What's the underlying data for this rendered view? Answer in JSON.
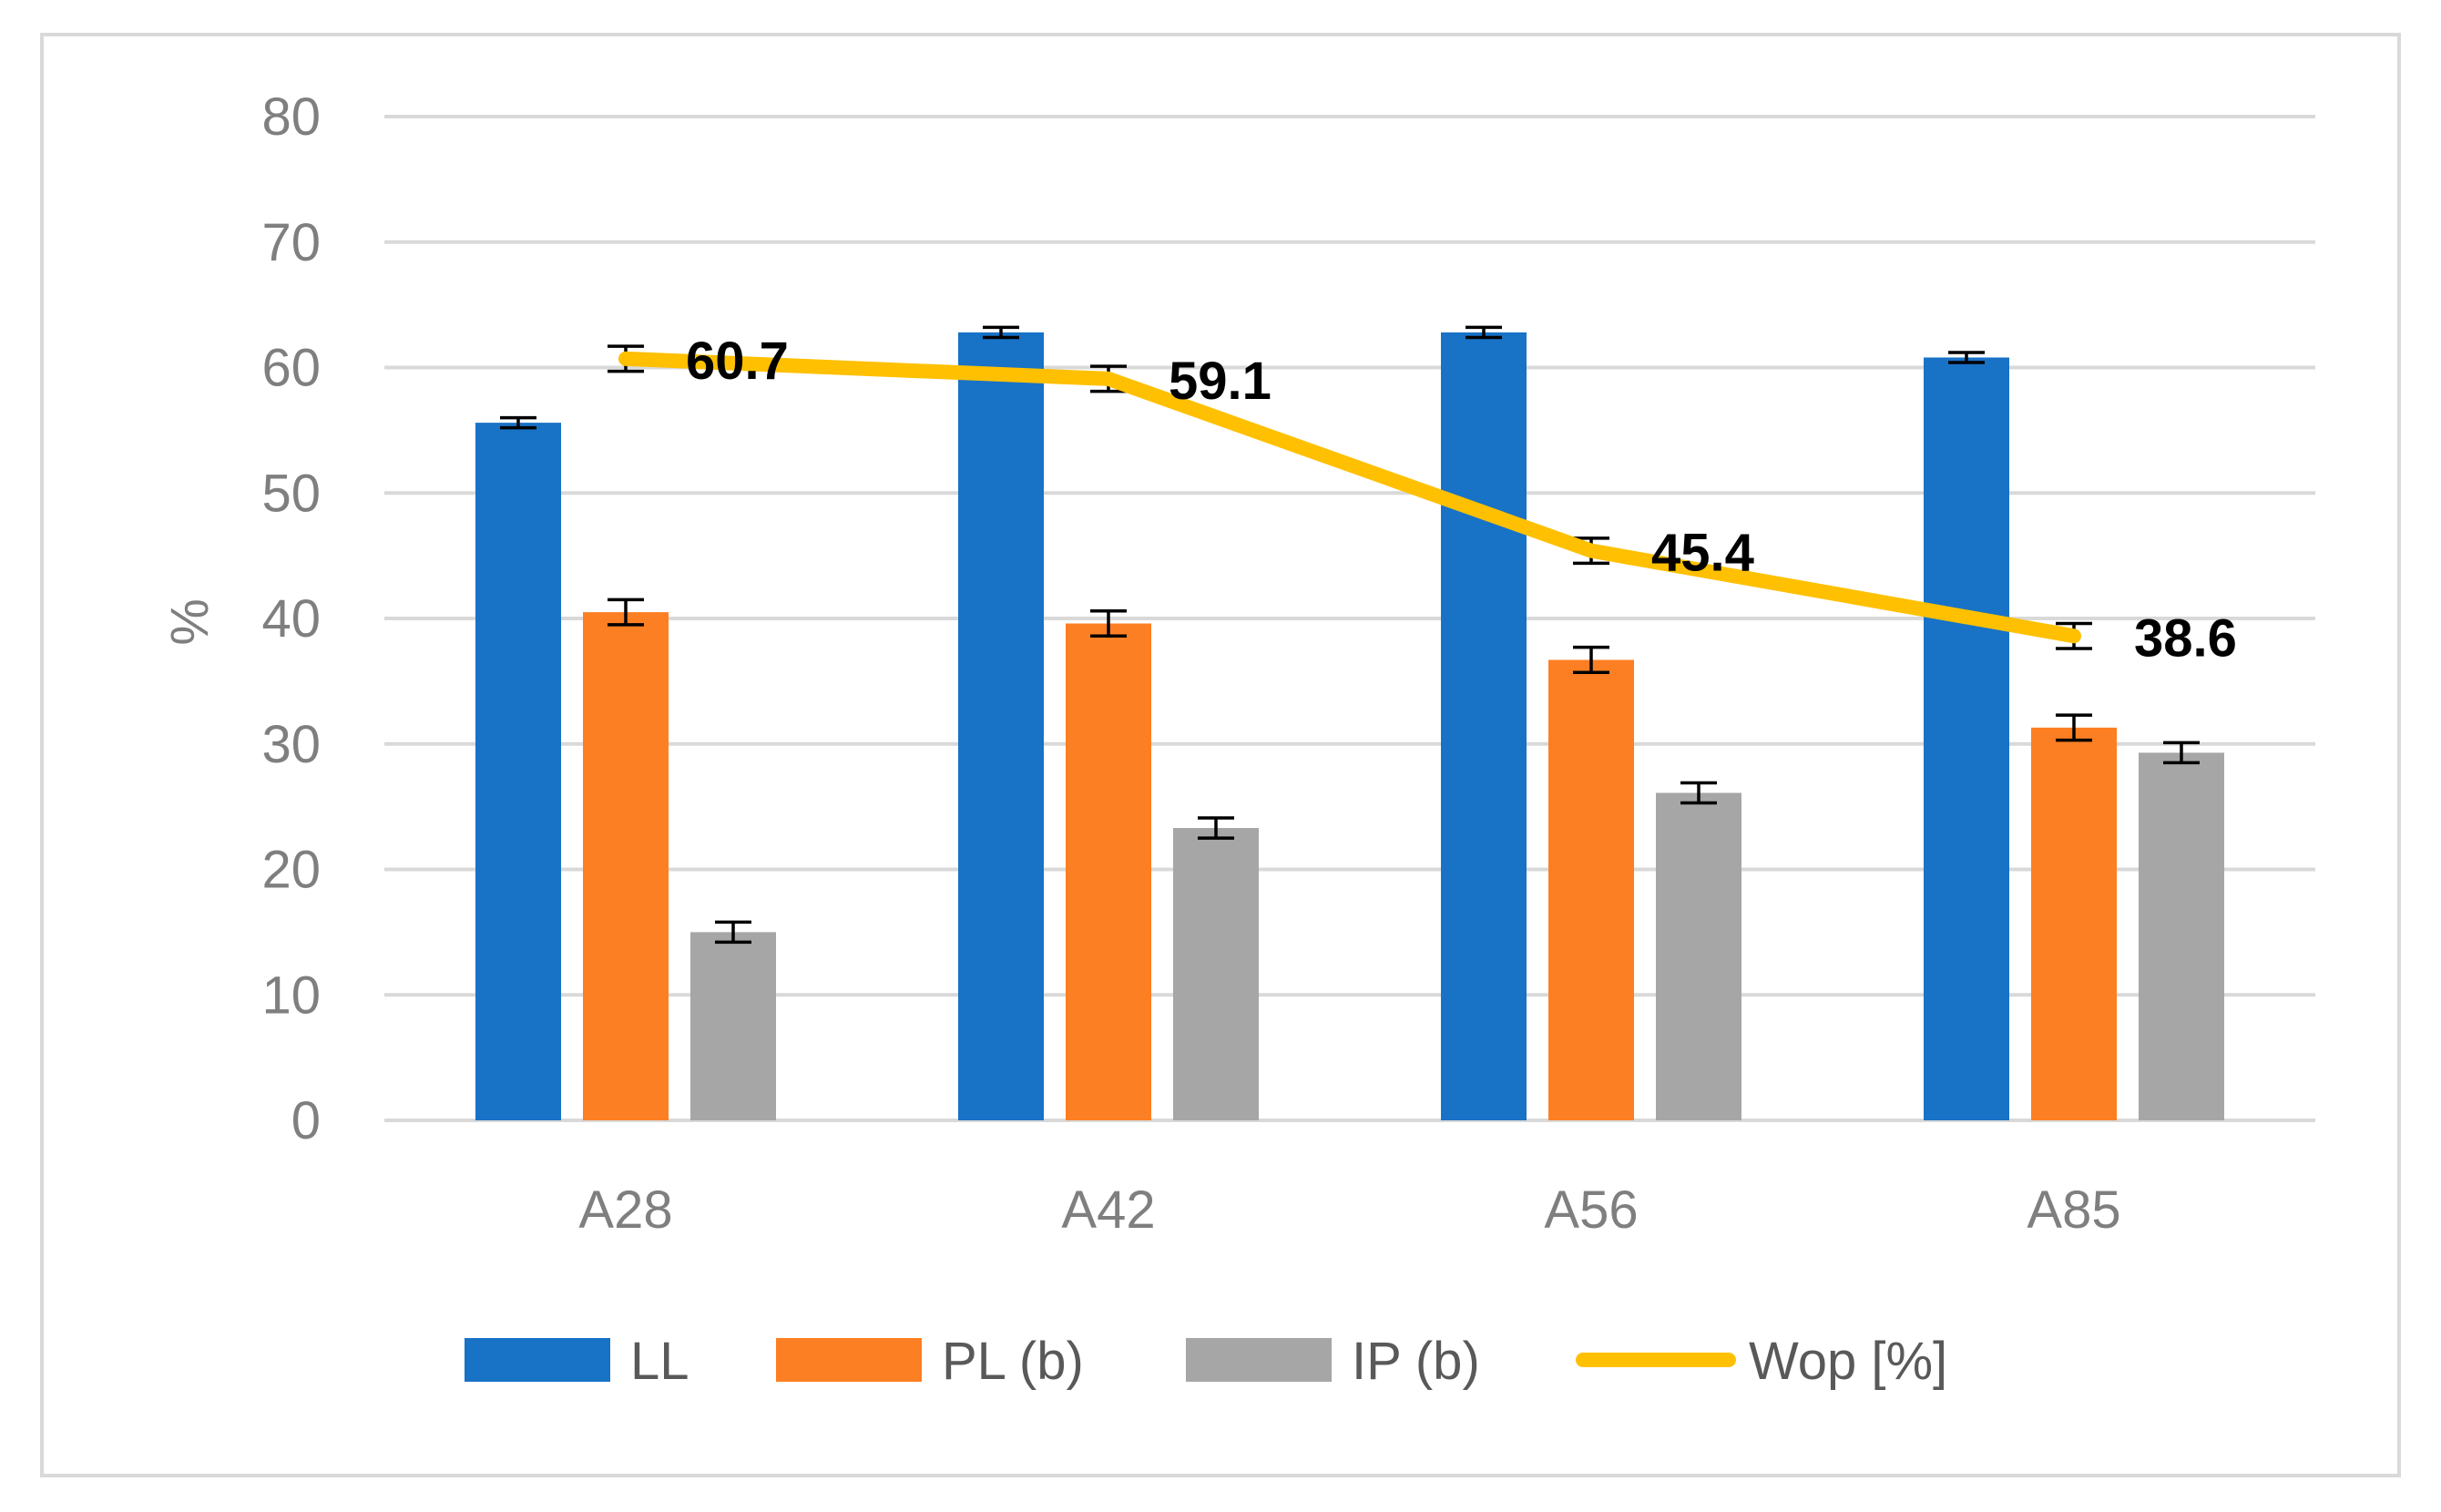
{
  "chart_data": {
    "type": "bar",
    "title": "",
    "xlabel": "",
    "ylabel": "%",
    "ylim": [
      0,
      80
    ],
    "yticks": [
      0,
      10,
      20,
      30,
      40,
      50,
      60,
      70,
      80
    ],
    "grid": true,
    "legend_position": "bottom",
    "categories": [
      "A28",
      "A42",
      "A56",
      "A85"
    ],
    "series": [
      {
        "name": "LL",
        "kind": "bar",
        "color": "#1872c6",
        "values": [
          55.6,
          62.8,
          62.8,
          60.8
        ],
        "errors": [
          0.4,
          0.4,
          0.4,
          0.4
        ]
      },
      {
        "name": "PL (b)",
        "kind": "bar",
        "color": "#fd7f23",
        "values": [
          40.5,
          39.6,
          36.7,
          31.3
        ],
        "errors": [
          1.0,
          1.0,
          1.0,
          1.0
        ]
      },
      {
        "name": "IP (b)",
        "kind": "bar",
        "color": "#a6a6a6",
        "values": [
          15.0,
          23.3,
          26.1,
          29.3
        ],
        "errors": [
          0.8,
          0.8,
          0.8,
          0.8
        ]
      },
      {
        "name": "Wop [%]",
        "kind": "line",
        "color": "#fec000",
        "values": [
          60.7,
          59.1,
          45.4,
          38.6
        ],
        "errors": [
          1.0,
          1.0,
          1.0,
          1.0
        ],
        "labels": [
          "60.7",
          "59.1",
          "45.4",
          "38.6"
        ]
      }
    ]
  }
}
